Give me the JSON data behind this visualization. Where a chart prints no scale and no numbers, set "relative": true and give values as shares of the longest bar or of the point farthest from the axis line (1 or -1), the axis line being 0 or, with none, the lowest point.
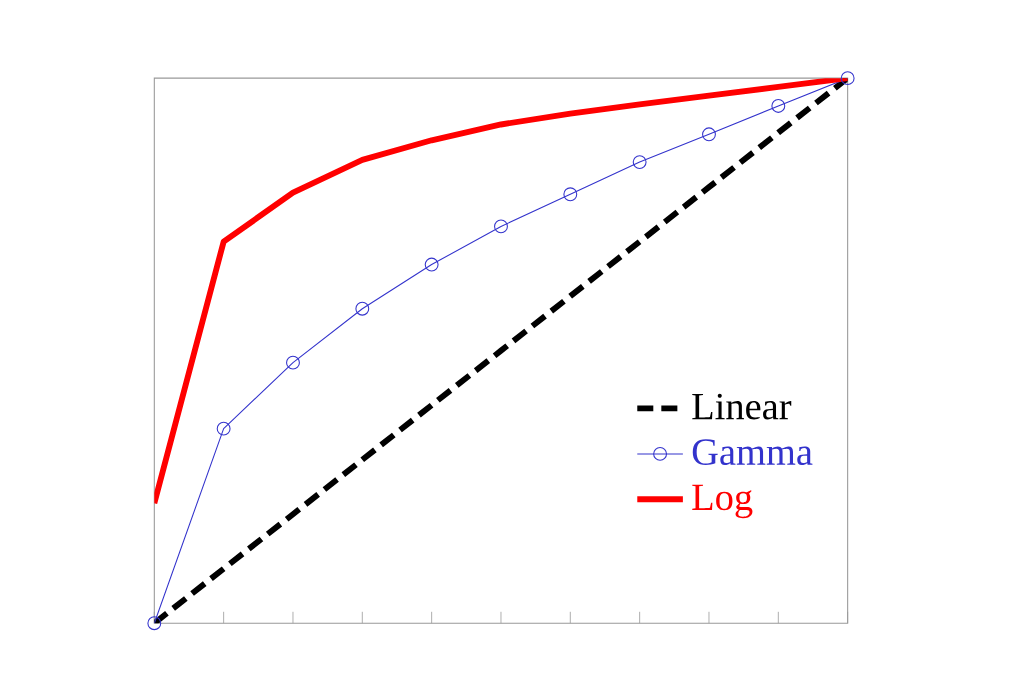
{
  "chart_data": {
    "type": "line",
    "relative": true,
    "categories": [
      null,
      null,
      null,
      null,
      null,
      null,
      null,
      null,
      null,
      null,
      null
    ],
    "legend": "right",
    "series": [
      {
        "name": "Linear",
        "color": "#000000",
        "line_style": "dashed",
        "marker": "none",
        "values": [
          0,
          0.1,
          0.2,
          0.3,
          0.4,
          0.5,
          0.6,
          0.7,
          0.8,
          0.9,
          1
        ]
      },
      {
        "name": "Gamma",
        "color": "#3333cc",
        "line_style": "solid",
        "marker": "circle",
        "values": [
          0,
          0.357,
          0.478,
          0.577,
          0.658,
          0.728,
          0.787,
          0.846,
          0.897,
          0.949,
          1
        ]
      },
      {
        "name": "Log",
        "color": "#ff0000",
        "line_style": "solid",
        "marker": "none",
        "values": [
          0.22,
          0.7,
          0.79,
          0.85,
          0.886,
          0.915,
          0.935,
          0.952,
          0.968,
          0.984,
          1
        ]
      }
    ]
  }
}
